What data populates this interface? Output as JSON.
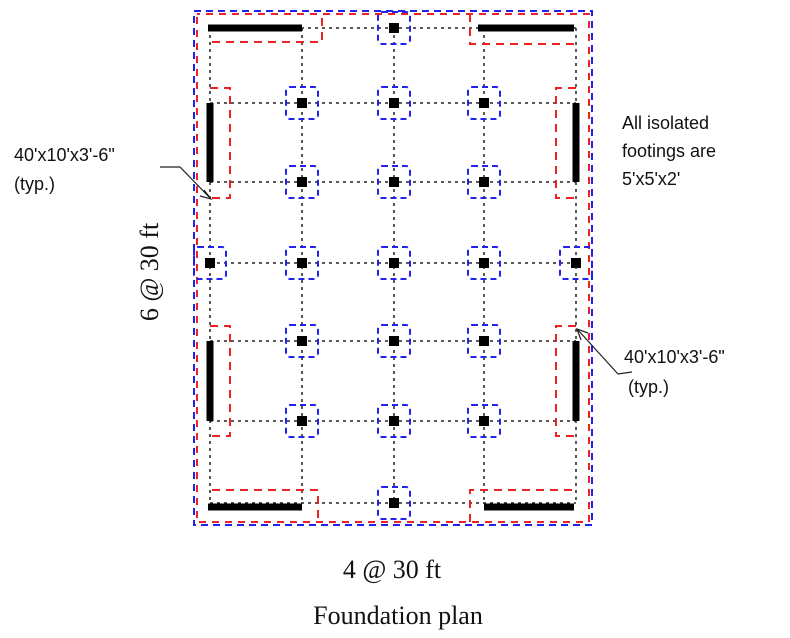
{
  "labels": {
    "vertical_dim": "6 @ 30 ft",
    "horizontal_dim": "4 @ 30 ft",
    "caption": "Foundation plan",
    "note_lines": [
      "All isolated",
      "footings are",
      "5'x5'x2'"
    ],
    "callout_left": [
      "40'x10'x3'-6\"",
      "(typ.)"
    ],
    "callout_right": [
      "40'x10'x3'-6\"",
      "(typ.)"
    ]
  },
  "colors": {
    "grid": "#222222",
    "column": "#000000",
    "wall": "#000000",
    "isolated_footing_outline": "#2222ee",
    "strip_footing_outline": "#ee2222"
  }
}
